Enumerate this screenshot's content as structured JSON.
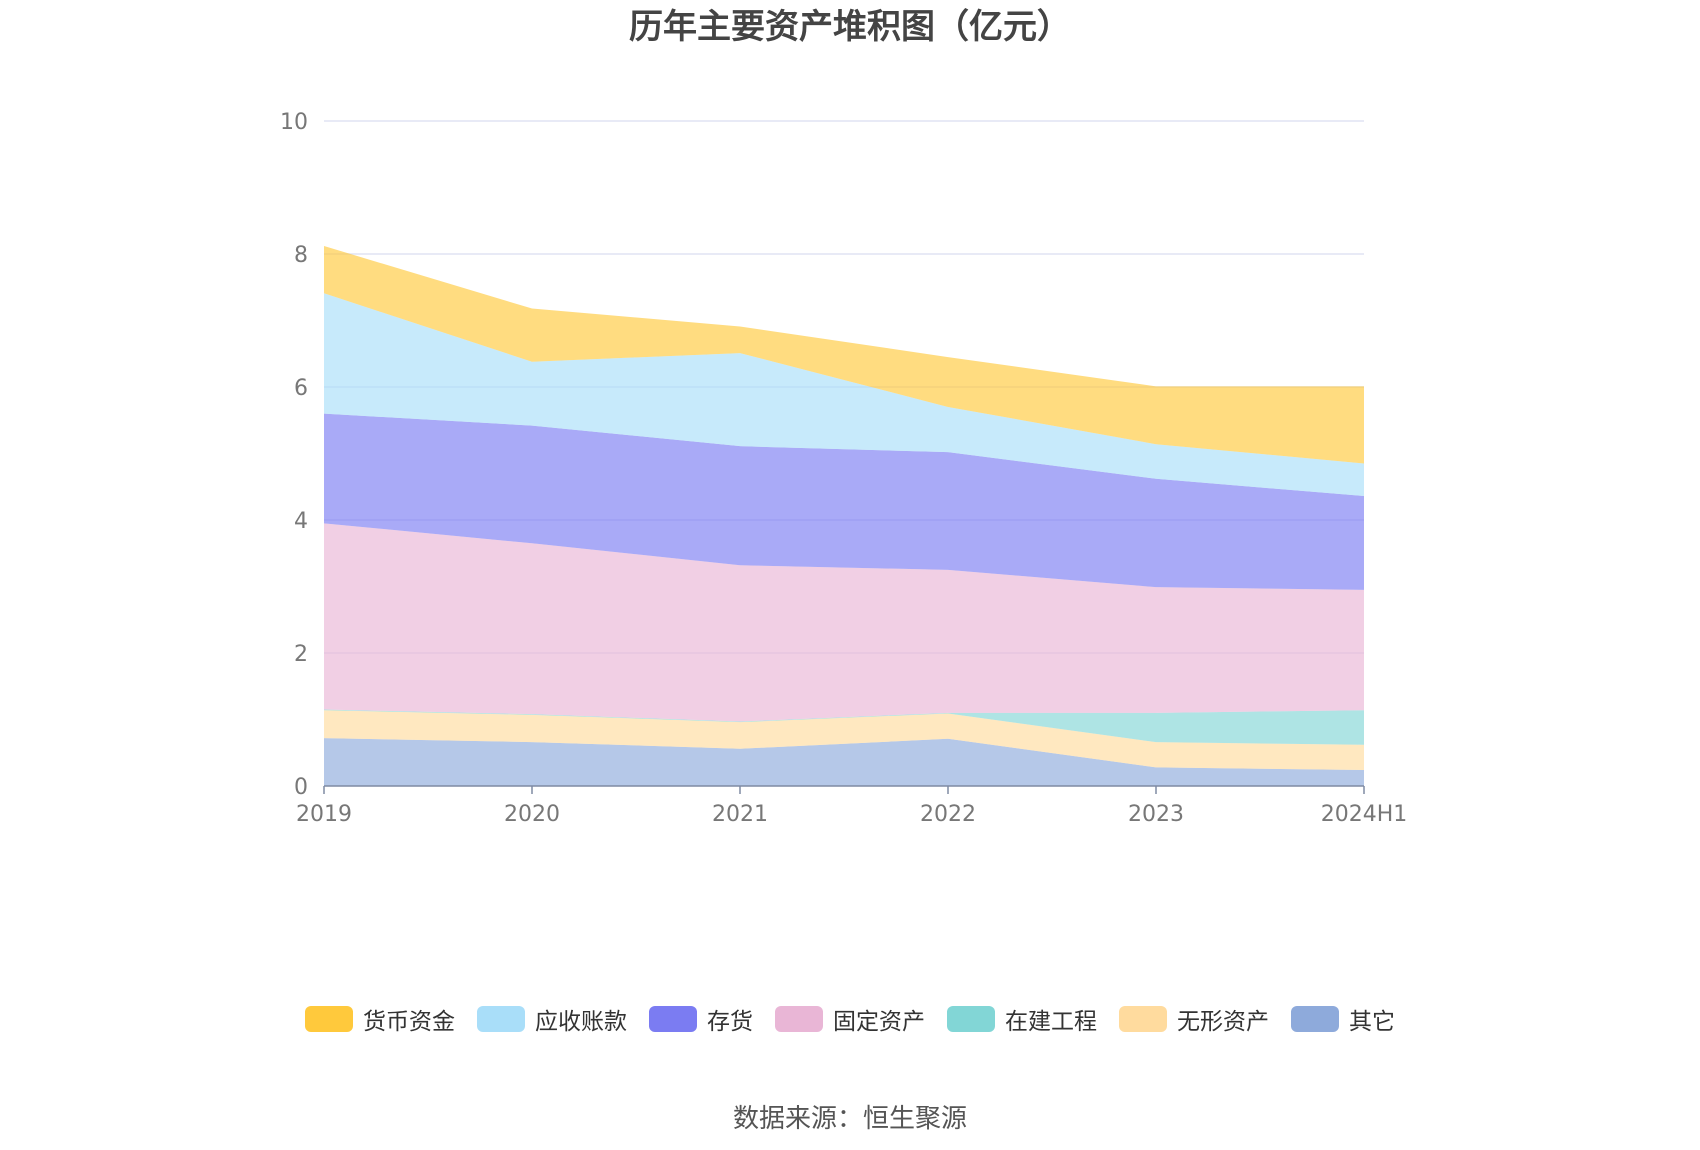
{
  "chart_data": {
    "type": "area",
    "stacked": true,
    "title": "历年主要资产堆积图（亿元）",
    "source": "数据来源：恒生聚源",
    "categories": [
      "2019",
      "2020",
      "2021",
      "2022",
      "2023",
      "2024H1"
    ],
    "ylim": [
      0,
      10
    ],
    "yticks": [
      0,
      2,
      4,
      6,
      8,
      10
    ],
    "grid": true,
    "legend_position": "bottom",
    "series": [
      {
        "name": "其它",
        "color": "#8eaadb",
        "values": [
          0.72,
          0.66,
          0.56,
          0.71,
          0.28,
          0.24
        ]
      },
      {
        "name": "无形资产",
        "color": "#ffdb9e",
        "values": [
          0.42,
          0.41,
          0.4,
          0.38,
          0.38,
          0.38
        ]
      },
      {
        "name": "在建工程",
        "color": "#82d6d6",
        "values": [
          0.01,
          0.01,
          0.01,
          0.01,
          0.44,
          0.52
        ]
      },
      {
        "name": "固定资产",
        "color": "#e9b6d6",
        "values": [
          2.8,
          2.57,
          2.35,
          2.15,
          1.89,
          1.81
        ]
      },
      {
        "name": "存货",
        "color": "#7b7cf2",
        "values": [
          1.65,
          1.77,
          1.79,
          1.77,
          1.63,
          1.41
        ]
      },
      {
        "name": "应收账款",
        "color": "#a9def9",
        "values": [
          1.81,
          0.96,
          1.4,
          0.68,
          0.52,
          0.49
        ]
      },
      {
        "name": "货币资金",
        "color": "#ffc93c",
        "values": [
          0.71,
          0.8,
          0.4,
          0.75,
          0.87,
          1.16
        ]
      }
    ],
    "legend_order": [
      "货币资金",
      "应收账款",
      "存货",
      "固定资产",
      "在建工程",
      "无形资产",
      "其它"
    ]
  }
}
